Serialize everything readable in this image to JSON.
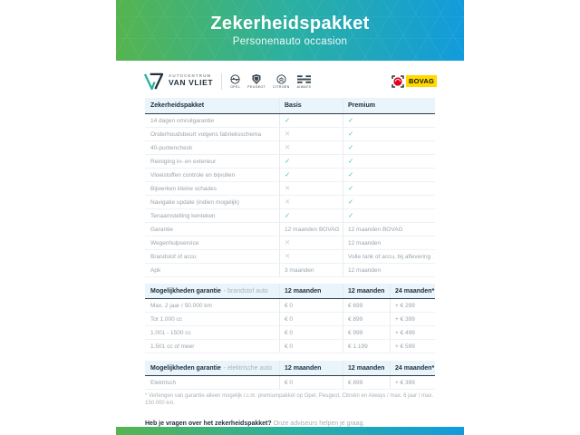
{
  "colors": {
    "green": "#55b44f",
    "teal": "#2bb0a2",
    "blue": "#129bdc",
    "check": "#3fc2bb",
    "lightblue": "#e9f4fb",
    "bovag_yellow": "#ffd900",
    "bovag_red": "#e2001a"
  },
  "header": {
    "title": "Zekerheidspakket",
    "subtitle": "Personenauto occasion"
  },
  "branding": {
    "dealer": {
      "name_top": "AUTOCENTRUM",
      "name_bottom": "VAN VLIET"
    },
    "brands": [
      {
        "label": "OPEL"
      },
      {
        "label": "PEUGEOT"
      },
      {
        "label": "CITROËN"
      },
      {
        "label": "AIWAYS"
      }
    ],
    "bovag_label": "BOVAG"
  },
  "package_table": {
    "headers": [
      "Zekerheidspakket",
      "Basis",
      "Premium"
    ],
    "rows": [
      {
        "label": "14 dagen omruilgarantie",
        "basis": "check",
        "premium": "check"
      },
      {
        "label": "Onderhoudsbeurt volgens fabrieksschema",
        "basis": "cross",
        "premium": "check"
      },
      {
        "label": "40-puntencheck",
        "basis": "cross",
        "premium": "check"
      },
      {
        "label": "Reiniging in- en exterieur",
        "basis": "check",
        "premium": "check"
      },
      {
        "label": "Vloeistoffen controle en bijvullen",
        "basis": "check",
        "premium": "check"
      },
      {
        "label": "Bijwerken kleine schades",
        "basis": "cross",
        "premium": "check"
      },
      {
        "label": "Navigatie update (indien mogelijk)",
        "basis": "cross",
        "premium": "check"
      },
      {
        "label": "Tenaamstelling kenteken",
        "basis": "check",
        "premium": "check"
      },
      {
        "label": "Garantie",
        "basis": "12 maanden BOVAG",
        "premium": "12 maanden BOVAG"
      },
      {
        "label": "Wegenhulpservice",
        "basis": "cross",
        "premium": "12 maanden"
      },
      {
        "label": "Brandstof of accu",
        "basis": "cross",
        "premium": "Volle tank of accu, bij aflevering"
      },
      {
        "label": "Apk",
        "basis": "3 maanden",
        "premium": "12 maanden"
      }
    ]
  },
  "fuel_table": {
    "title_bold": "Mogelijkheden garantie",
    "title_light": "- brandstof auto",
    "columns": [
      "12 maanden",
      "12 maanden",
      "24 maanden*"
    ],
    "rows": [
      {
        "label": "Max. 2 jaar / 50.000 km",
        "values": [
          "€ 0",
          "€ 699",
          "+ € 299"
        ]
      },
      {
        "label": "Tot 1.000 cc",
        "values": [
          "€ 0",
          "€ 899",
          "+ € 399"
        ]
      },
      {
        "label": "1.001 - 1500 cc",
        "values": [
          "€ 0",
          "€ 999",
          "+ € 499"
        ]
      },
      {
        "label": "1.501 cc of meer",
        "values": [
          "€ 0",
          "€ 1.199",
          "+ € 599"
        ]
      }
    ]
  },
  "electric_table": {
    "title_bold": "Mogelijkheden garantie",
    "title_light": "- elektrische auto",
    "columns": [
      "12 maanden",
      "12 maanden",
      "24 maanden*"
    ],
    "rows": [
      {
        "label": "Elektrisch",
        "values": [
          "€ 0",
          "€ 899",
          "+ € 399"
        ]
      }
    ]
  },
  "footnote": "* Verlengen van garantie alleen mogelijk i.c.m. premiumpakket op Opel, Peugeot, Citroën en Aiways / max. 6 jaar / max. 150.000 km.",
  "cta": {
    "bold": "Heb je vragen over het zekerheidspakket?",
    "light": "Onze adviseurs helpen je graag."
  }
}
